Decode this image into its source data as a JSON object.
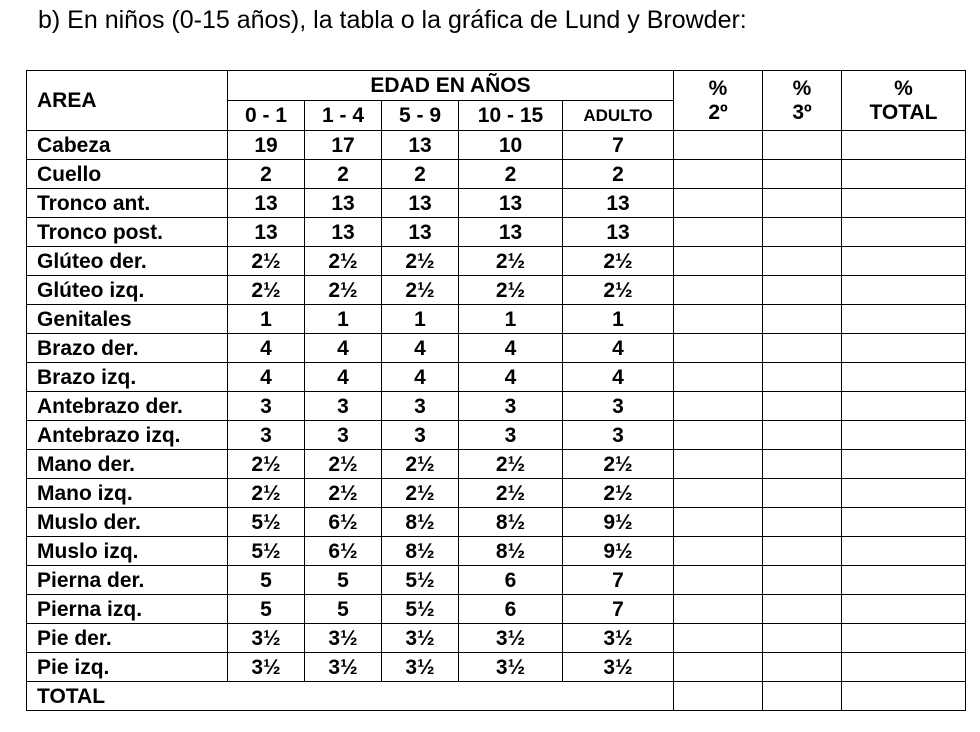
{
  "heading": "b) En niños (0-15 años), la tabla o la gráfica de Lund y Browder:",
  "table": {
    "area_header": "AREA",
    "edad_header": "EDAD EN AÑOS",
    "age_columns": [
      "0 - 1",
      "1 - 4",
      "5 - 9",
      "10 - 15",
      "ADULTO"
    ],
    "pct_columns": [
      {
        "line1": "%",
        "line2": "2º"
      },
      {
        "line1": "%",
        "line2": "3º"
      },
      {
        "line1": "%",
        "line2": "TOTAL"
      }
    ],
    "rows": [
      {
        "area": "Cabeza",
        "values": [
          "19",
          "17",
          "13",
          "10",
          "7"
        ]
      },
      {
        "area": "Cuello",
        "values": [
          "2",
          "2",
          "2",
          "2",
          "2"
        ]
      },
      {
        "area": "Tronco ant.",
        "values": [
          "13",
          "13",
          "13",
          "13",
          "13"
        ]
      },
      {
        "area": "Tronco post.",
        "values": [
          "13",
          "13",
          "13",
          "13",
          "13"
        ]
      },
      {
        "area": "Glúteo der.",
        "values": [
          "2½",
          "2½",
          "2½",
          "2½",
          "2½"
        ]
      },
      {
        "area": "Glúteo izq.",
        "values": [
          "2½",
          "2½",
          "2½",
          "2½",
          "2½"
        ]
      },
      {
        "area": "Genitales",
        "values": [
          "1",
          "1",
          "1",
          "1",
          "1"
        ]
      },
      {
        "area": "Brazo der.",
        "values": [
          "4",
          "4",
          "4",
          "4",
          "4"
        ]
      },
      {
        "area": "Brazo izq.",
        "values": [
          "4",
          "4",
          "4",
          "4",
          "4"
        ]
      },
      {
        "area": "Antebrazo der.",
        "values": [
          "3",
          "3",
          "3",
          "3",
          "3"
        ]
      },
      {
        "area": "Antebrazo izq.",
        "values": [
          "3",
          "3",
          "3",
          "3",
          "3"
        ]
      },
      {
        "area": "Mano der.",
        "values": [
          "2½",
          "2½",
          "2½",
          "2½",
          "2½"
        ]
      },
      {
        "area": "Mano izq.",
        "values": [
          "2½",
          "2½",
          "2½",
          "2½",
          "2½"
        ]
      },
      {
        "area": "Muslo der.",
        "values": [
          "5½",
          "6½",
          "8½",
          "8½",
          "9½"
        ]
      },
      {
        "area": "Muslo izq.",
        "values": [
          "5½",
          "6½",
          "8½",
          "8½",
          "9½"
        ]
      },
      {
        "area": "Pierna der.",
        "values": [
          "5",
          "5",
          "5½",
          "6",
          "7"
        ]
      },
      {
        "area": "Pierna izq.",
        "values": [
          "5",
          "5",
          "5½",
          "6",
          "7"
        ]
      },
      {
        "area": "Pie der.",
        "values": [
          "3½",
          "3½",
          "3½",
          "3½",
          "3½"
        ]
      },
      {
        "area": "Pie izq.",
        "values": [
          "3½",
          "3½",
          "3½",
          "3½",
          "3½"
        ]
      }
    ],
    "total_label": "TOTAL"
  }
}
